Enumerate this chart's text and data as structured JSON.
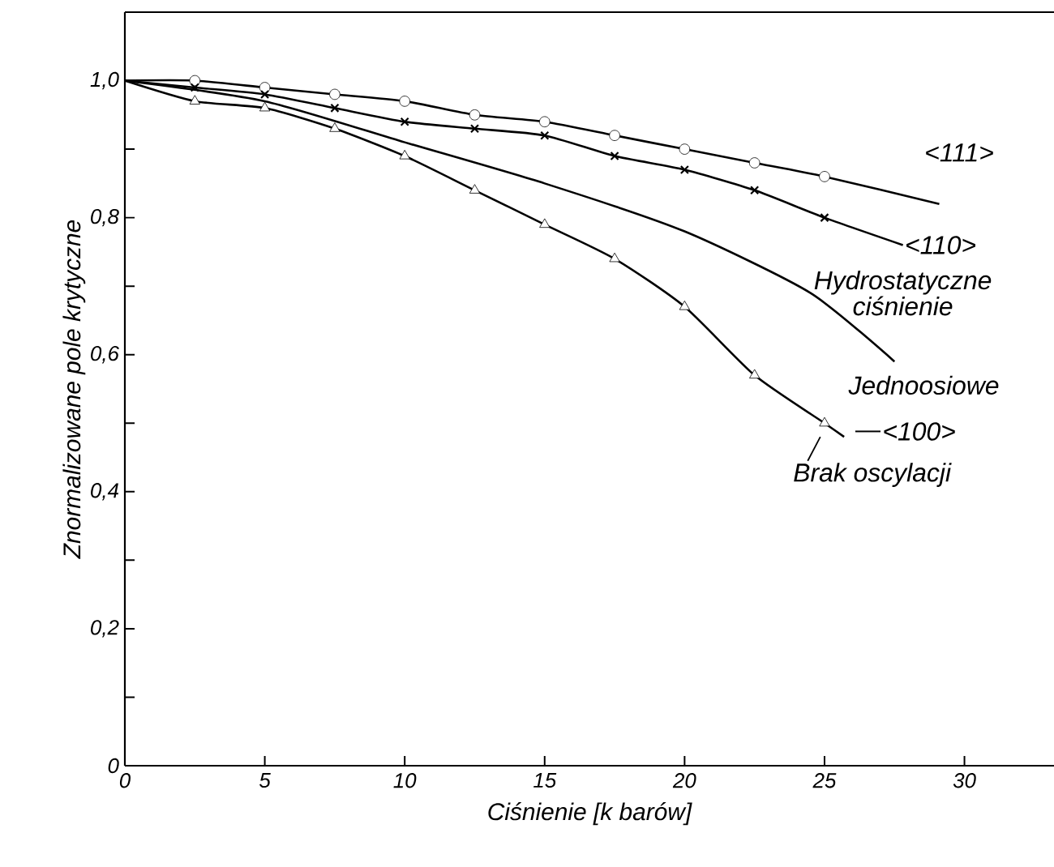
{
  "chart_data": {
    "type": "line",
    "xlabel": "Ciśnienie [k barów]",
    "ylabel": "Znormalizowane pole krytyczne",
    "xlim": [
      0,
      33.2
    ],
    "ylim": [
      0,
      1.1
    ],
    "xticks": [
      0,
      5,
      10,
      15,
      20,
      25,
      30
    ],
    "yticks": [
      0,
      {
        "value": 0.1,
        "label": null
      },
      {
        "value": 0.2,
        "label": "0,2"
      },
      {
        "value": 0.3,
        "label": null
      },
      {
        "value": 0.4,
        "label": "0,4"
      },
      {
        "value": 0.5,
        "label": null
      },
      {
        "value": 0.6,
        "label": "0,6"
      },
      {
        "value": 0.7,
        "label": null
      },
      {
        "value": 0.8,
        "label": "0,8"
      },
      {
        "value": 0.9,
        "label": null
      },
      {
        "value": 1.0,
        "label": "1,0"
      }
    ],
    "grid": false,
    "line_style": "solid",
    "series": [
      {
        "name": "<111>",
        "color": "#000000",
        "marker": "none",
        "x": [
          0,
          2.5,
          5,
          7.5,
          10,
          12.5,
          15,
          17.5,
          20,
          22.5,
          25,
          29.1
        ],
        "values": [
          1.0,
          1.0,
          0.99,
          0.98,
          0.97,
          0.95,
          0.94,
          0.92,
          0.9,
          0.88,
          0.86,
          0.82
        ]
      },
      {
        "type": "scatter",
        "color": "#000000",
        "marker": "circle",
        "x": [
          2.5,
          5,
          7.5,
          10,
          12.5,
          15,
          17.5,
          20,
          22.5,
          25
        ],
        "values": [
          1.0,
          0.99,
          0.98,
          0.97,
          0.95,
          0.94,
          0.92,
          0.9,
          0.88,
          0.86
        ]
      },
      {
        "name": "<110>",
        "color": "#000000",
        "marker": "none",
        "x": [
          0,
          2.5,
          5,
          7.5,
          10,
          12.5,
          15,
          17.5,
          20,
          22.5,
          25,
          27.8
        ],
        "values": [
          1.0,
          0.99,
          0.98,
          0.96,
          0.94,
          0.93,
          0.92,
          0.89,
          0.87,
          0.84,
          0.8,
          0.76
        ]
      },
      {
        "type": "scatter",
        "color": "#000000",
        "marker": "cross",
        "x": [
          2.5,
          5,
          7.5,
          10,
          12.5,
          15,
          17.5,
          20,
          22.5,
          25
        ],
        "values": [
          0.99,
          0.98,
          0.96,
          0.94,
          0.93,
          0.92,
          0.89,
          0.87,
          0.84,
          0.8
        ]
      },
      {
        "name": "Hydrostatyczne ciśnienie",
        "color": "#000000",
        "marker": "none",
        "x": [
          0,
          5,
          10,
          15,
          20,
          24.5,
          27.5
        ],
        "values": [
          1.0,
          0.97,
          0.91,
          0.85,
          0.78,
          0.69,
          0.59
        ]
      },
      {
        "name": "<100>",
        "color": "#000000",
        "marker": "none",
        "x": [
          0,
          2.5,
          5,
          7.5,
          10,
          12.5,
          15,
          17.5,
          20,
          22.5,
          25,
          25.7
        ],
        "values": [
          1.0,
          0.97,
          0.96,
          0.93,
          0.89,
          0.84,
          0.79,
          0.74,
          0.67,
          0.57,
          0.5,
          0.48
        ]
      },
      {
        "type": "scatter",
        "color": "#000000",
        "marker": "triangle",
        "x": [
          2.5,
          5,
          7.5,
          10,
          12.5,
          15,
          17.5,
          20,
          22.5,
          25
        ],
        "values": [
          0.97,
          0.96,
          0.93,
          0.89,
          0.84,
          0.79,
          0.74,
          0.67,
          0.57,
          0.5
        ]
      }
    ],
    "annotations": [
      "Jednoosiowe",
      {
        "text": "Brak oscylacji",
        "x": 25,
        "y": 0.5
      }
    ]
  }
}
